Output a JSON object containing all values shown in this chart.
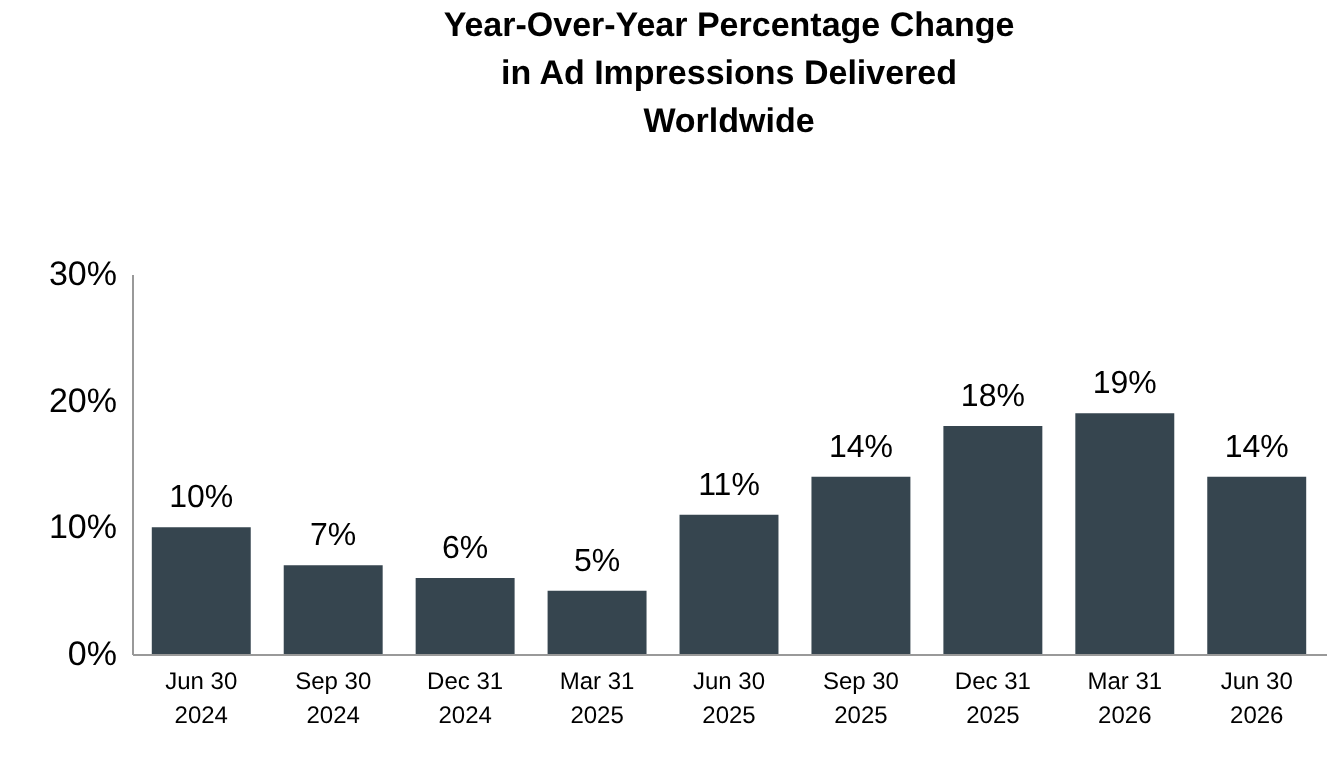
{
  "chart_data": {
    "type": "bar",
    "title": "Year-Over-Year Percentage Change in Ad Impressions Delivered Worldwide",
    "categories": [
      "Jun 30 2024",
      "Sep 30 2024",
      "Dec 31 2024",
      "Mar 31 2025",
      "Jun 30 2025",
      "Sep 30 2025",
      "Dec 31 2025",
      "Mar 31 2026",
      "Jun 30 2026"
    ],
    "values": [
      10,
      7,
      6,
      5,
      11,
      14,
      18,
      19,
      14
    ],
    "value_labels": [
      "10%",
      "7%",
      "6%",
      "5%",
      "11%",
      "14%",
      "18%",
      "19%",
      "14%"
    ],
    "color": "#36454f",
    "ylim": [
      0,
      30
    ],
    "yticks": [
      {
        "value": 0,
        "label": "0%"
      },
      {
        "value": 10,
        "label": "10%"
      },
      {
        "value": 20,
        "label": "20%"
      },
      {
        "value": 30,
        "label": "30%"
      }
    ],
    "grid": false
  }
}
